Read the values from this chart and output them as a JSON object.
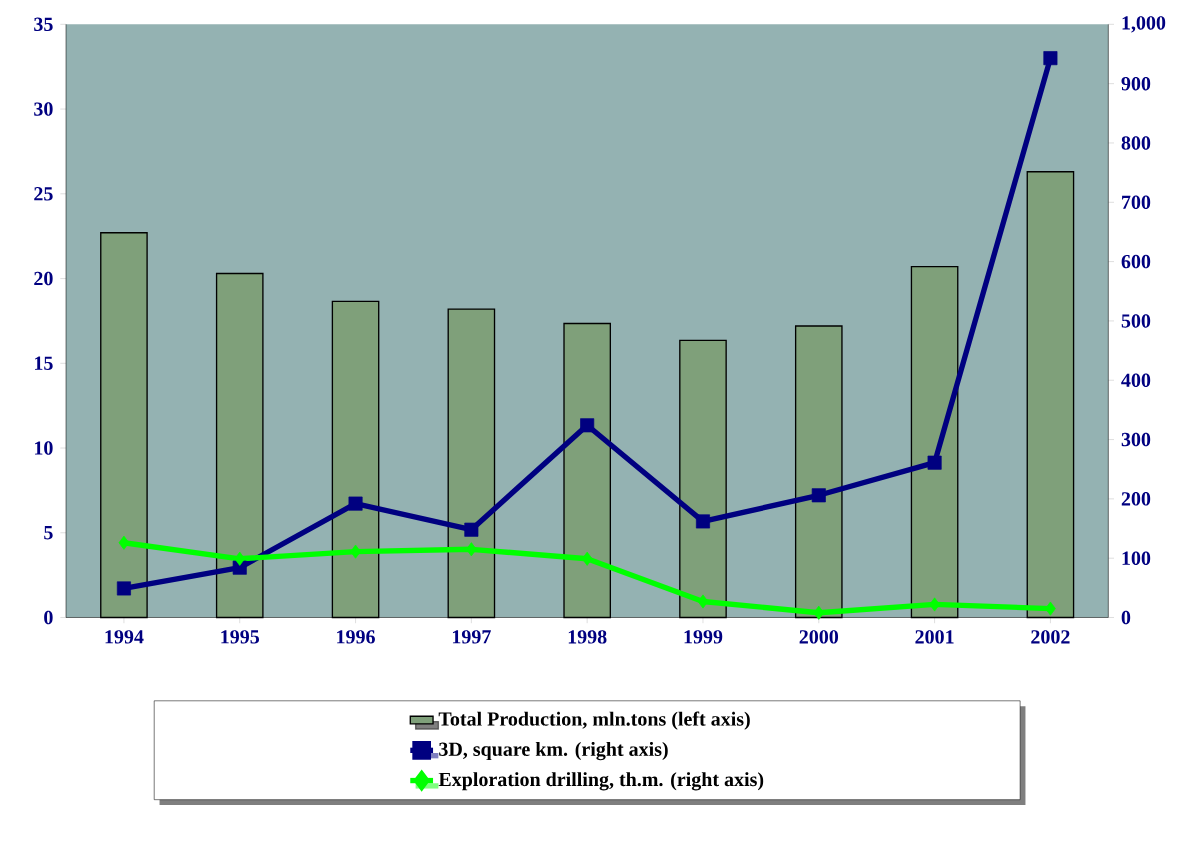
{
  "chart_data": {
    "type": "bar",
    "categories": [
      "1994",
      "1995",
      "1996",
      "1997",
      "1998",
      "1999",
      "2000",
      "2001",
      "2002"
    ],
    "series": [
      {
        "name": "Total Production, mln.tons (left axis)",
        "color": "#7fa07a",
        "values": [
          22.7,
          20.3,
          18.65,
          18.2,
          17.35,
          16.35,
          17.2,
          20.7,
          26.3
        ]
      },
      {
        "name": "3D, square km. (right axis)",
        "type": "line",
        "axis": "y2",
        "marker": "square",
        "color": "#000080",
        "values": [
          49,
          84,
          192,
          148,
          324,
          162,
          206,
          261,
          943
        ]
      },
      {
        "name": "Exploration drilling, th.m. (right axis)",
        "type": "line",
        "axis": "y2",
        "marker": "diamond",
        "color": "#00ff00",
        "values": [
          126,
          99,
          111,
          115,
          99,
          27,
          8,
          22,
          15
        ]
      }
    ],
    "ylim": [
      0,
      35
    ],
    "yticks": [
      0,
      5,
      10,
      15,
      20,
      25,
      30,
      35
    ],
    "y2lim": [
      0,
      1000
    ],
    "y2ticks": [
      0,
      100,
      200,
      300,
      400,
      500,
      600,
      700,
      800,
      900,
      {
        "value": 1000,
        "label": "1,000"
      }
    ],
    "legend": "bottom",
    "grid": false
  }
}
